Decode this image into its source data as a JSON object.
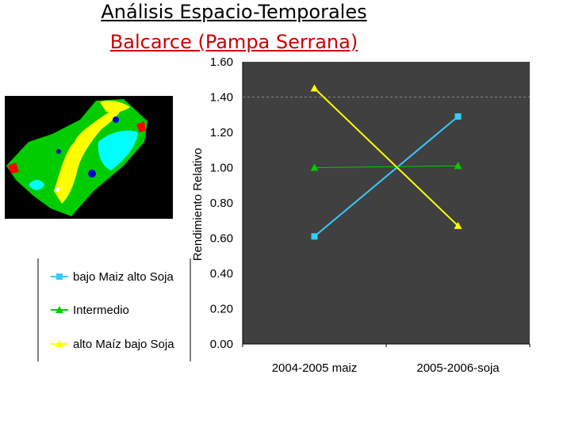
{
  "slide": {
    "title": "Análisis Espacio-Temporales",
    "subtitle": "Balcarce (Pampa Serrana)"
  },
  "map": {
    "colors": {
      "background": "#000000",
      "field": "#00cc00",
      "high": "#ffff00",
      "low": "#00ffff",
      "very_low": "#0000cc",
      "border": "#ff0000",
      "center": "#ffffff"
    }
  },
  "chart_data": {
    "type": "line",
    "categories": [
      "2004-2005 maiz",
      "2005-2006-soja"
    ],
    "series": [
      {
        "name": "bajo Maiz alto Soja",
        "values": [
          0.61,
          1.29
        ],
        "color": "#33ccff",
        "marker": "square"
      },
      {
        "name": "Intermedio",
        "values": [
          1.0,
          1.01
        ],
        "color": "#00cc00",
        "marker": "triangle"
      },
      {
        "name": "alto Maíz bajo Soja",
        "values": [
          1.45,
          0.67
        ],
        "color": "#ffff00",
        "marker": "triangle"
      }
    ],
    "ylabel": "Rendimiento Relativo",
    "xlabel": "",
    "ylim": [
      0,
      1.6
    ],
    "yticks": [
      "0.00",
      "0.20",
      "0.40",
      "0.60",
      "0.80",
      "1.00",
      "1.20",
      "1.40",
      "1.60"
    ],
    "reference_line": 1.4,
    "plot_background": "#404040",
    "legend_position": "left",
    "grid": false
  }
}
